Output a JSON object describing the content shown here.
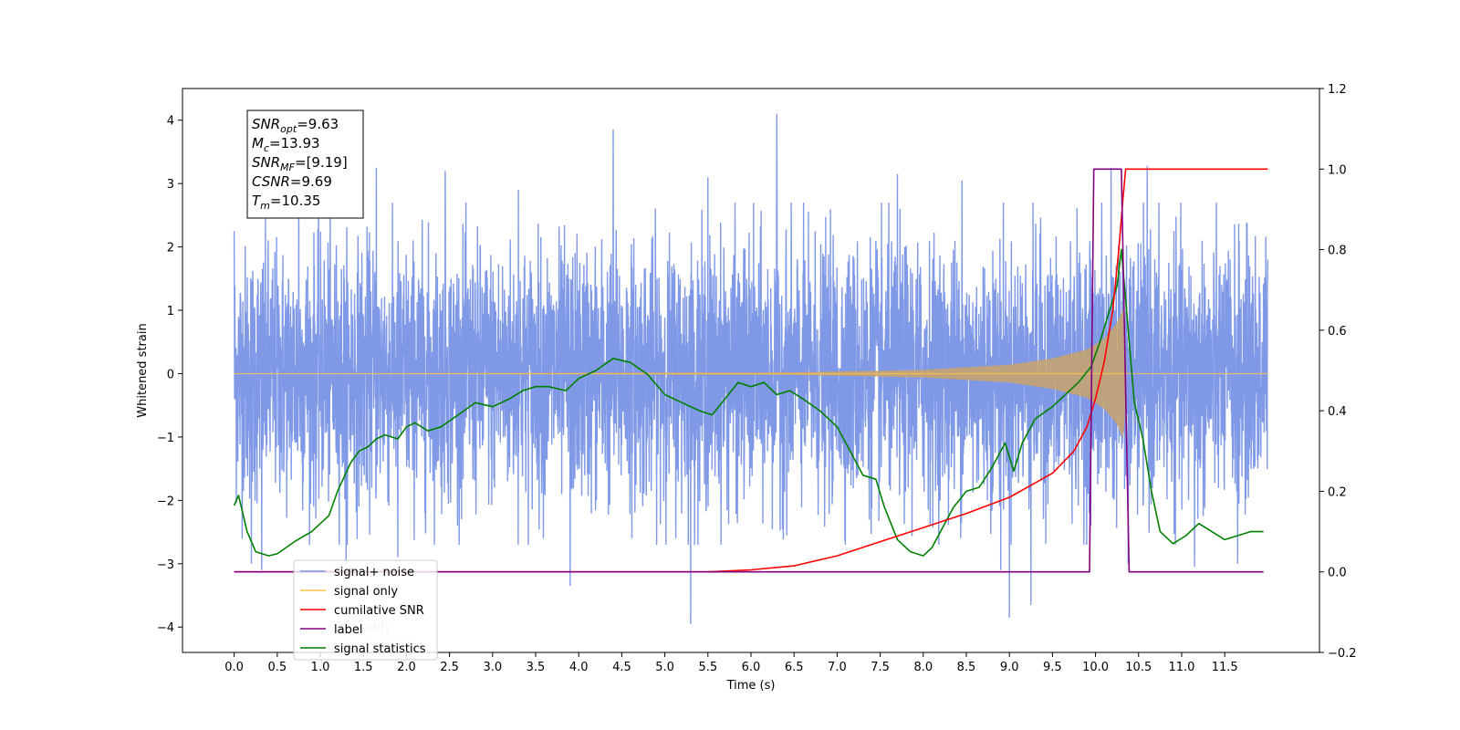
{
  "chart_data": {
    "type": "line",
    "xlabel": "Time (s)",
    "ylabel": "Whitened strain",
    "xlim": [
      -0.6,
      12.6
    ],
    "ylim": [
      -4.4,
      4.5
    ],
    "y2lim": [
      -0.2,
      1.2
    ],
    "x_ticks": [
      0.0,
      0.5,
      1.0,
      1.5,
      2.0,
      2.5,
      3.0,
      3.5,
      4.0,
      4.5,
      5.0,
      5.5,
      6.0,
      6.5,
      7.0,
      7.5,
      8.0,
      8.5,
      9.0,
      9.5,
      10.0,
      10.5,
      11.0,
      11.5
    ],
    "x_tick_labels": [
      "0.0",
      "0.5",
      "1.0",
      "1.5",
      "2.0",
      "2.5",
      "3.0",
      "3.5",
      "4.0",
      "4.5",
      "5.0",
      "5.5",
      "6.0",
      "6.5",
      "7.0",
      "7.5",
      "8.0",
      "8.5",
      "9.0",
      "9.5",
      "10.0",
      "10.5",
      "11.0",
      "11.5"
    ],
    "y_ticks": [
      4,
      3,
      2,
      1,
      0,
      -1,
      -2,
      -3,
      -4
    ],
    "y_tick_labels": [
      "4",
      "3",
      "2",
      "1",
      "0",
      "−1",
      "−2",
      "−3",
      "−4"
    ],
    "y2_ticks": [
      1.2,
      1.0,
      0.8,
      0.6,
      0.4,
      0.2,
      0.0,
      -0.2
    ],
    "y2_tick_labels": [
      "1.2",
      "1.0",
      "0.8",
      "0.6",
      "0.4",
      "0.2",
      "0.0",
      "−0.2"
    ],
    "grid": false,
    "legend_position": "bottom-left",
    "annotation": {
      "lines": [
        {
          "sym": "SNR",
          "sub": "opt",
          "rest": "=9.63"
        },
        {
          "sym": "M",
          "sub": "c",
          "rest": "=13.93"
        },
        {
          "sym": "SNR",
          "sub": "MF",
          "rest": "=[9.19]"
        },
        {
          "sym": "CSNR",
          "sub": "",
          "rest": "=9.69"
        },
        {
          "sym": "T",
          "sub": "m",
          "rest": "=10.35"
        }
      ]
    },
    "legend": [
      {
        "label": "signal+ noise",
        "color": "#7893e6"
      },
      {
        "label": "signal only",
        "color": "#ffc24d"
      },
      {
        "label": "cumilative SNR",
        "color": "#ff0000"
      },
      {
        "label": "label",
        "color": "#800080"
      },
      {
        "label": "signal statistics",
        "color": "#008000"
      }
    ],
    "ghost_legend_text": [
      "ignal only",
      "signal statistics"
    ],
    "series": [
      {
        "name": "signal+ noise",
        "axis": "left",
        "color": "#7893e6",
        "x_range": [
          0.0,
          12.0
        ],
        "typical_amplitude": 1.6,
        "peaks": [
          {
            "x": 0.0,
            "y": 2.25
          },
          {
            "x": 0.2,
            "y": -3.0
          },
          {
            "x": 0.32,
            "y": -3.1
          },
          {
            "x": 0.75,
            "y": 3.05
          },
          {
            "x": 1.3,
            "y": -3.0
          },
          {
            "x": 1.65,
            "y": 3.25
          },
          {
            "x": 1.9,
            "y": -2.9
          },
          {
            "x": 2.45,
            "y": 3.2
          },
          {
            "x": 3.3,
            "y": 2.9
          },
          {
            "x": 3.9,
            "y": -3.35
          },
          {
            "x": 4.4,
            "y": 3.85
          },
          {
            "x": 5.3,
            "y": -3.95
          },
          {
            "x": 5.5,
            "y": 3.1
          },
          {
            "x": 6.3,
            "y": 4.1
          },
          {
            "x": 7.7,
            "y": 3.15
          },
          {
            "x": 8.45,
            "y": 3.05
          },
          {
            "x": 8.9,
            "y": -3.1
          },
          {
            "x": 9.0,
            "y": -3.85
          },
          {
            "x": 9.25,
            "y": -3.65
          },
          {
            "x": 10.18,
            "y": 3.25
          },
          {
            "x": 10.38,
            "y": -3.0
          },
          {
            "x": 10.6,
            "y": 3.28
          },
          {
            "x": 11.15,
            "y": -3.05
          },
          {
            "x": 11.65,
            "y": -3.0
          },
          {
            "x": 12.0,
            "y": 1.8
          }
        ]
      },
      {
        "name": "signal only",
        "axis": "left",
        "color": "#ffc24d",
        "x_range": [
          0.0,
          12.0
        ],
        "envelope": [
          {
            "x": 0.0,
            "y": 0.0
          },
          {
            "x": 6.5,
            "y": 0.02
          },
          {
            "x": 8.0,
            "y": 0.06
          },
          {
            "x": 9.0,
            "y": 0.14
          },
          {
            "x": 9.5,
            "y": 0.24
          },
          {
            "x": 9.9,
            "y": 0.38
          },
          {
            "x": 10.1,
            "y": 0.55
          },
          {
            "x": 10.25,
            "y": 0.8
          },
          {
            "x": 10.33,
            "y": 1.05
          },
          {
            "x": 10.36,
            "y": 0.0
          },
          {
            "x": 12.0,
            "y": 0.0
          }
        ]
      },
      {
        "name": "cumilative SNR",
        "axis": "right",
        "color": "#ff0000",
        "x": [
          0.0,
          5.0,
          5.5,
          6.0,
          6.5,
          7.0,
          7.5,
          8.0,
          8.5,
          9.0,
          9.5,
          9.75,
          9.9,
          10.0,
          10.1,
          10.2,
          10.27,
          10.32,
          10.35,
          10.5,
          11.0,
          11.5,
          12.0
        ],
        "values": [
          0.0,
          0.0,
          0.0,
          0.005,
          0.015,
          0.04,
          0.075,
          0.11,
          0.145,
          0.185,
          0.245,
          0.3,
          0.36,
          0.43,
          0.52,
          0.65,
          0.8,
          0.93,
          1.0,
          1.0,
          1.0,
          1.0,
          1.0
        ]
      },
      {
        "name": "label",
        "axis": "right",
        "color": "#800080",
        "x": [
          0.0,
          9.93,
          9.98,
          10.3,
          10.39,
          11.95
        ],
        "values": [
          0.0,
          0.0,
          1.0,
          1.0,
          0.0,
          0.0
        ]
      },
      {
        "name": "signal statistics",
        "axis": "right",
        "color": "#008000",
        "x": [
          0.0,
          0.05,
          0.15,
          0.25,
          0.4,
          0.5,
          0.7,
          0.9,
          1.1,
          1.2,
          1.35,
          1.45,
          1.55,
          1.65,
          1.75,
          1.9,
          2.0,
          2.1,
          2.25,
          2.4,
          2.6,
          2.8,
          3.0,
          3.2,
          3.35,
          3.5,
          3.65,
          3.85,
          4.0,
          4.2,
          4.4,
          4.6,
          4.8,
          5.0,
          5.2,
          5.4,
          5.55,
          5.7,
          5.85,
          6.0,
          6.15,
          6.3,
          6.45,
          6.6,
          6.8,
          7.0,
          7.15,
          7.3,
          7.45,
          7.55,
          7.7,
          7.85,
          8.0,
          8.1,
          8.2,
          8.35,
          8.5,
          8.65,
          8.8,
          8.95,
          9.05,
          9.15,
          9.3,
          9.5,
          9.65,
          9.8,
          9.95,
          10.05,
          10.15,
          10.25,
          10.3,
          10.38,
          10.45,
          10.55,
          10.65,
          10.75,
          10.9,
          11.05,
          11.2,
          11.35,
          11.5,
          11.65,
          11.8,
          11.95
        ],
        "values": [
          0.165,
          0.19,
          0.1,
          0.05,
          0.04,
          0.045,
          0.075,
          0.1,
          0.14,
          0.2,
          0.27,
          0.3,
          0.31,
          0.33,
          0.34,
          0.33,
          0.36,
          0.37,
          0.35,
          0.36,
          0.39,
          0.42,
          0.41,
          0.43,
          0.45,
          0.46,
          0.46,
          0.45,
          0.48,
          0.5,
          0.53,
          0.52,
          0.49,
          0.44,
          0.42,
          0.4,
          0.39,
          0.43,
          0.47,
          0.46,
          0.47,
          0.44,
          0.45,
          0.43,
          0.4,
          0.36,
          0.3,
          0.24,
          0.23,
          0.16,
          0.08,
          0.05,
          0.04,
          0.06,
          0.1,
          0.16,
          0.2,
          0.21,
          0.26,
          0.32,
          0.25,
          0.32,
          0.38,
          0.41,
          0.44,
          0.47,
          0.51,
          0.57,
          0.64,
          0.71,
          0.8,
          0.6,
          0.42,
          0.33,
          0.2,
          0.1,
          0.07,
          0.09,
          0.12,
          0.1,
          0.08,
          0.09,
          0.1,
          0.1
        ]
      }
    ]
  }
}
